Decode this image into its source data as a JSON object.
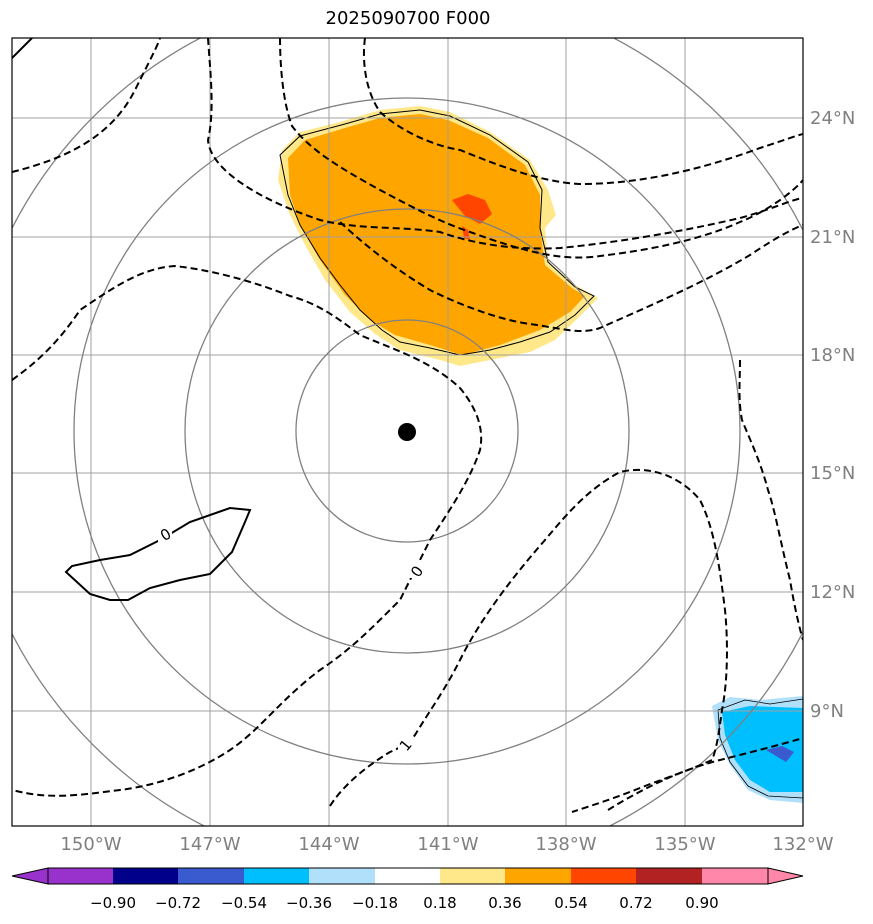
{
  "title": "2025090700 F000",
  "map": {
    "lat_labels": [
      "24°N",
      "21°N",
      "18°N",
      "15°N",
      "12°N",
      "9°N"
    ],
    "lon_labels": [
      "150°W",
      "147°W",
      "144°W",
      "141°W",
      "138°W",
      "135°W",
      "132°W"
    ],
    "contour_labels": [
      "0",
      "0",
      "1"
    ],
    "center_marker": "storm-center-dot"
  },
  "colorbar": {
    "ticks": [
      "−0.90",
      "−0.72",
      "−0.54",
      "−0.36",
      "−0.18",
      "0.18",
      "0.36",
      "0.54",
      "0.72",
      "0.90"
    ],
    "colors": [
      "#9932cc",
      "#00008b",
      "#3a5bd0",
      "#00bfff",
      "#b0e0fa",
      "#ffffff",
      "#ffe88a",
      "#ffa500",
      "#ff4500",
      "#b22222",
      "#ff88aa"
    ]
  }
}
